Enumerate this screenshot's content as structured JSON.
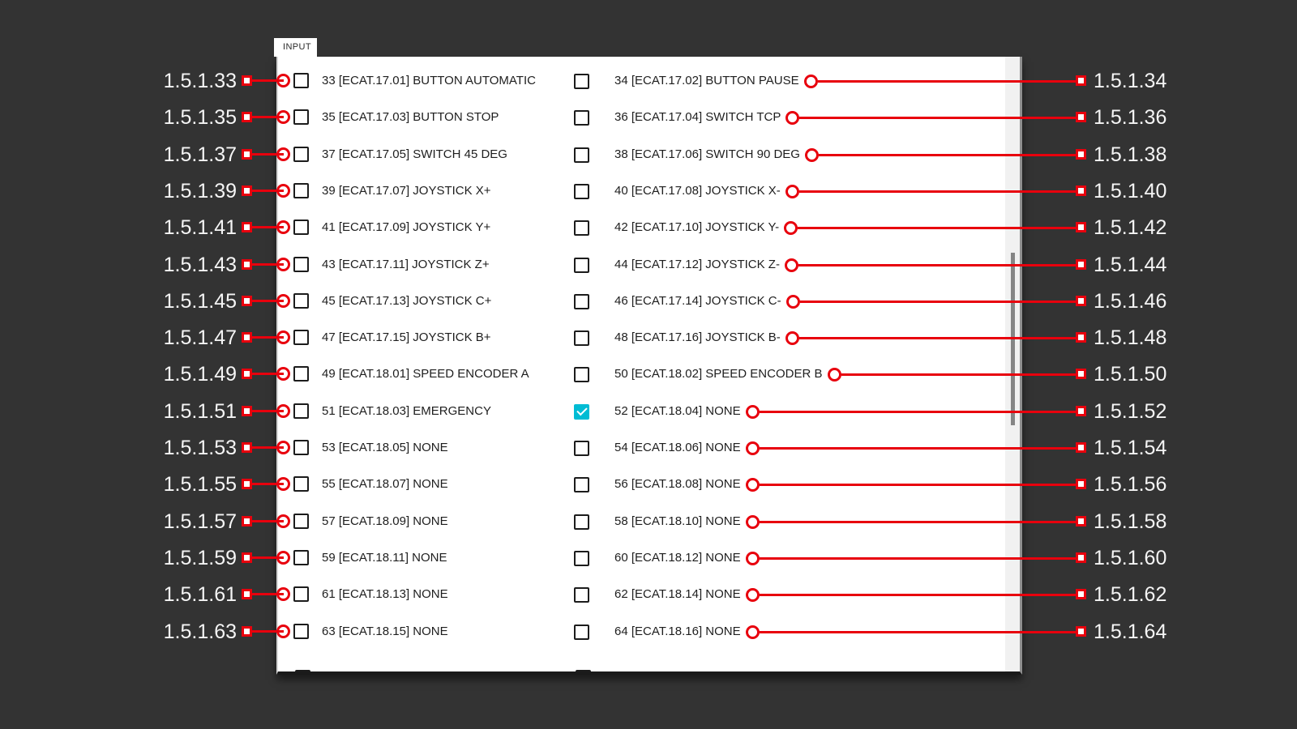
{
  "window": {
    "background": "#333333"
  },
  "colors": {
    "wire_red": "#e8000d",
    "checked_cyan": "#00bcd4"
  },
  "tab": {
    "label": "INPUT"
  },
  "panel": {
    "scrollbar_visible": true,
    "next_row_partially_visible": true
  },
  "rows": [
    {
      "left": {
        "pin": "1.5.1.33",
        "label": "33 [ECAT.17.01] BUTTON AUTOMATIC",
        "checked": false
      },
      "right": {
        "pin": "1.5.1.34",
        "label": "34 [ECAT.17.02] BUTTON PAUSE",
        "checked": false
      }
    },
    {
      "left": {
        "pin": "1.5.1.35",
        "label": "35 [ECAT.17.03] BUTTON STOP",
        "checked": false
      },
      "right": {
        "pin": "1.5.1.36",
        "label": "36 [ECAT.17.04] SWITCH TCP",
        "checked": false
      }
    },
    {
      "left": {
        "pin": "1.5.1.37",
        "label": "37 [ECAT.17.05] SWITCH 45 DEG",
        "checked": false
      },
      "right": {
        "pin": "1.5.1.38",
        "label": "38 [ECAT.17.06] SWITCH 90 DEG",
        "checked": false
      }
    },
    {
      "left": {
        "pin": "1.5.1.39",
        "label": "39 [ECAT.17.07] JOYSTICK X+",
        "checked": false
      },
      "right": {
        "pin": "1.5.1.40",
        "label": "40 [ECAT.17.08] JOYSTICK X-",
        "checked": false
      }
    },
    {
      "left": {
        "pin": "1.5.1.41",
        "label": "41 [ECAT.17.09] JOYSTICK Y+",
        "checked": false
      },
      "right": {
        "pin": "1.5.1.42",
        "label": "42 [ECAT.17.10] JOYSTICK Y-",
        "checked": false
      }
    },
    {
      "left": {
        "pin": "1.5.1.43",
        "label": "43 [ECAT.17.11] JOYSTICK Z+",
        "checked": false
      },
      "right": {
        "pin": "1.5.1.44",
        "label": "44 [ECAT.17.12] JOYSTICK Z-",
        "checked": false
      }
    },
    {
      "left": {
        "pin": "1.5.1.45",
        "label": "45 [ECAT.17.13] JOYSTICK C+",
        "checked": false
      },
      "right": {
        "pin": "1.5.1.46",
        "label": "46 [ECAT.17.14] JOYSTICK C-",
        "checked": false
      }
    },
    {
      "left": {
        "pin": "1.5.1.47",
        "label": "47 [ECAT.17.15] JOYSTICK B+",
        "checked": false
      },
      "right": {
        "pin": "1.5.1.48",
        "label": "48 [ECAT.17.16] JOYSTICK B-",
        "checked": false
      }
    },
    {
      "left": {
        "pin": "1.5.1.49",
        "label": "49 [ECAT.18.01] SPEED ENCODER A",
        "checked": false
      },
      "right": {
        "pin": "1.5.1.50",
        "label": "50 [ECAT.18.02] SPEED ENCODER B",
        "checked": false
      }
    },
    {
      "left": {
        "pin": "1.5.1.51",
        "label": "51 [ECAT.18.03] EMERGENCY",
        "checked": false
      },
      "right": {
        "pin": "1.5.1.52",
        "label": "52 [ECAT.18.04] NONE",
        "checked": true
      }
    },
    {
      "left": {
        "pin": "1.5.1.53",
        "label": "53 [ECAT.18.05] NONE",
        "checked": false
      },
      "right": {
        "pin": "1.5.1.54",
        "label": "54 [ECAT.18.06] NONE",
        "checked": false
      }
    },
    {
      "left": {
        "pin": "1.5.1.55",
        "label": "55 [ECAT.18.07] NONE",
        "checked": false
      },
      "right": {
        "pin": "1.5.1.56",
        "label": "56 [ECAT.18.08] NONE",
        "checked": false
      }
    },
    {
      "left": {
        "pin": "1.5.1.57",
        "label": "57 [ECAT.18.09] NONE",
        "checked": false
      },
      "right": {
        "pin": "1.5.1.58",
        "label": "58 [ECAT.18.10] NONE",
        "checked": false
      }
    },
    {
      "left": {
        "pin": "1.5.1.59",
        "label": "59 [ECAT.18.11] NONE",
        "checked": false
      },
      "right": {
        "pin": "1.5.1.60",
        "label": "60 [ECAT.18.12] NONE",
        "checked": false
      }
    },
    {
      "left": {
        "pin": "1.5.1.61",
        "label": "61 [ECAT.18.13] NONE",
        "checked": false
      },
      "right": {
        "pin": "1.5.1.62",
        "label": "62 [ECAT.18.14] NONE",
        "checked": false
      }
    },
    {
      "left": {
        "pin": "1.5.1.63",
        "label": "63 [ECAT.18.15] NONE",
        "checked": false
      },
      "right": {
        "pin": "1.5.1.64",
        "label": "64 [ECAT.18.16] NONE",
        "checked": false
      }
    }
  ]
}
